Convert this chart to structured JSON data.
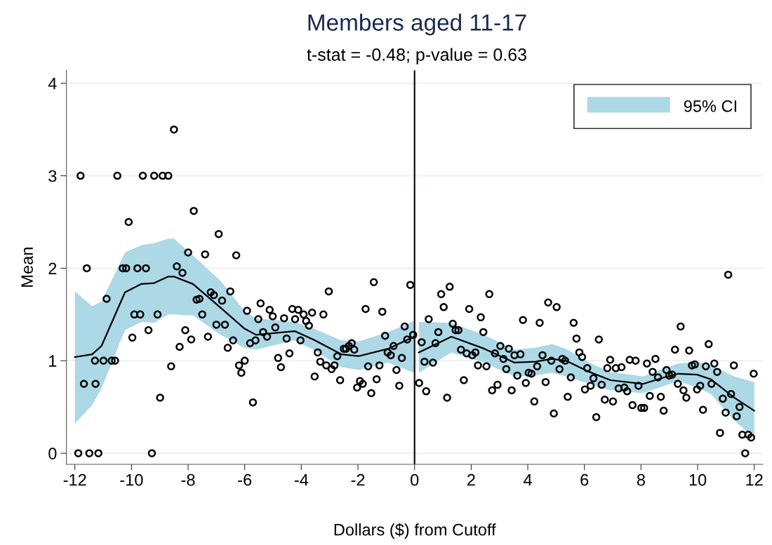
{
  "chart_data": {
    "type": "scatter",
    "title": "Members aged 11-17",
    "subtitle": "t-stat = -0.48; p-value = 0.63",
    "xlabel": "Dollars ($) from Cutoff",
    "ylabel": "Mean",
    "xlim": [
      -12.3,
      12.3
    ],
    "ylim": [
      -0.12,
      4.14
    ],
    "xticks": [
      -12,
      -10,
      -8,
      -6,
      -4,
      -2,
      0,
      2,
      4,
      6,
      8,
      10,
      12
    ],
    "yticks": [
      0,
      1,
      2,
      3,
      4
    ],
    "grid": "y",
    "legend": "top right",
    "ref_lines": [
      {
        "axis": "x",
        "value": 0,
        "color": "#000000"
      }
    ],
    "series": [
      {
        "type": "line",
        "name": "95% CI",
        "color": "#000000",
        "lower": [
          0.32,
          0.52,
          0.7,
          1.33,
          1.42,
          1.41,
          1.5,
          1.5,
          1.49,
          1.28,
          1.14,
          1.12,
          1.22,
          1.12,
          0.93,
          0.9,
          0.98,
          0.87,
          null,
          0.87,
          1.09,
          0.98,
          0.83,
          0.84,
          0.87,
          0.83,
          0.75,
          0.68,
          0.65,
          0.73,
          0.78,
          0.71,
          0.64,
          0.35,
          0.17
        ],
        "upper": [
          1.75,
          1.59,
          1.64,
          2.17,
          2.25,
          2.27,
          2.32,
          2.32,
          2.14,
          1.86,
          1.54,
          1.46,
          1.42,
          1.35,
          1.22,
          1.21,
          1.31,
          1.43,
          null,
          1.42,
          1.41,
          1.28,
          1.12,
          1.14,
          1.18,
          1.13,
          0.98,
          0.88,
          0.83,
          0.92,
          0.97,
          0.99,
          0.95,
          0.83,
          0.77
        ],
        "line_style": "solid",
        "marker": "none",
        "x": [
          -12,
          -11.39,
          -11.06,
          -10.23,
          -9.65,
          -9.2,
          -8.7,
          -8.5,
          -7.83,
          -6.84,
          -6.02,
          -5.6,
          -4.24,
          -3.58,
          -2.59,
          -1.97,
          -0.93,
          -0.02,
          0.07,
          0.15,
          1.3,
          2.46,
          3.53,
          4.27,
          4.85,
          5.35,
          6.17,
          6.92,
          8.08,
          8.82,
          9.32,
          9.98,
          10.47,
          11.3,
          12
        ],
        "values": [
          1.04,
          1.07,
          1.16,
          1.74,
          1.83,
          1.84,
          1.91,
          1.91,
          1.83,
          1.57,
          1.35,
          1.28,
          1.32,
          1.23,
          1.07,
          1.05,
          1.13,
          1.26,
          null,
          1.09,
          1.26,
          1.13,
          0.98,
          0.99,
          1.02,
          1.0,
          0.88,
          0.79,
          0.75,
          0.82,
          0.86,
          0.85,
          0.8,
          0.6,
          0.46
        ]
      },
      {
        "color": "#000000",
        "marker": "circle",
        "x": [
          -11.8,
          -10.5,
          -9.6,
          -9.2,
          -8.9,
          -8.7,
          -8.5,
          -7.8,
          -10.1,
          -6.92,
          -8.0,
          -7.4,
          -6.3,
          -11.58,
          -10.31,
          -10.19,
          -9.79,
          -9.49,
          -8.4,
          -8.2,
          -10.88,
          -7.2,
          -7.09,
          -7.7,
          -7.6,
          -6.8,
          -6.51,
          -9.9,
          -9.69,
          -9.08,
          -7.5,
          -9.4,
          -7.0,
          -6.7,
          -5.92,
          -5.44,
          -5.52,
          -5.35,
          -9.97,
          -8.1,
          -7.89,
          -7.3,
          -8.3,
          -6.41,
          -6.6,
          -5.81,
          -5.62,
          -11.29,
          -10.99,
          -10.7,
          -10.58,
          -8.6,
          -6.2,
          -6.0,
          -6.12,
          -11.68,
          -11.27,
          -8.99,
          -5.71,
          -11.88,
          -11.49,
          -11.17,
          -9.28,
          -5.21,
          -5.12,
          -5.01,
          -4.92,
          -4.82,
          -4.72,
          -4.61,
          -4.52,
          -4.42,
          -4.32,
          -4.11,
          -4.22,
          -3.92,
          -3.83,
          -3.73,
          -4.03,
          -3.62,
          -3.22,
          -3.03,
          -3.42,
          -3.33,
          -3.12,
          -2.93,
          -2.83,
          -3.53,
          -2.73,
          -2.63,
          -2.5,
          -2.42,
          -2.32,
          -2.22,
          -2.13,
          -2.03,
          -1.93,
          -1.83,
          -1.73,
          -1.64,
          -1.53,
          -1.44,
          -1.34,
          -1.24,
          -1.14,
          -1.04,
          -0.95,
          -0.84,
          -0.74,
          -0.64,
          -0.54,
          -0.45,
          -0.35,
          -0.26,
          -0.15,
          -0.05,
          0.16,
          0.35,
          0.41,
          0.25,
          0.5,
          0.65,
          0.74,
          0.84,
          0.94,
          1.03,
          1.15,
          1.24,
          1.35,
          1.45,
          1.55,
          1.64,
          1.74,
          1.84,
          1.93,
          2.04,
          2.15,
          2.24,
          2.34,
          2.43,
          2.54,
          2.64,
          2.74,
          2.84,
          2.93,
          3.03,
          3.14,
          3.24,
          3.33,
          3.43,
          3.53,
          3.63,
          3.74,
          3.83,
          3.93,
          4.03,
          4.13,
          4.23,
          4.33,
          4.42,
          4.52,
          4.63,
          4.72,
          4.83,
          4.92,
          5.02,
          5.12,
          5.22,
          5.32,
          5.41,
          5.52,
          5.62,
          5.72,
          5.82,
          5.92,
          6.02,
          6.1,
          6.22,
          6.32,
          6.42,
          6.51,
          6.61,
          6.72,
          6.81,
          6.91,
          7.01,
          7.11,
          7.21,
          7.31,
          7.41,
          7.51,
          7.6,
          7.7,
          7.81,
          7.91,
          8.01,
          8.11,
          8.21,
          8.31,
          8.41,
          8.51,
          8.6,
          8.7,
          8.8,
          8.9,
          9.0,
          9.1,
          9.2,
          9.3,
          9.4,
          9.5,
          9.6,
          9.7,
          9.8,
          9.9,
          9.98,
          10.09,
          10.19,
          10.29,
          10.39,
          10.49,
          10.59,
          10.69,
          10.79,
          10.89,
          10.99,
          11.08,
          11.18,
          11.28,
          11.38,
          11.48,
          11.58,
          11.68,
          11.79,
          11.89,
          11.98
        ],
        "values": [
          3,
          3,
          3,
          3,
          3,
          3,
          3.5,
          2.62,
          2.5,
          2.37,
          2.17,
          2.15,
          2.14,
          2,
          2,
          2,
          2,
          2,
          2.02,
          1.95,
          1.67,
          1.74,
          1.71,
          1.66,
          1.67,
          1.65,
          1.75,
          1.5,
          1.5,
          1.5,
          1.5,
          1.33,
          1.39,
          1.39,
          1.54,
          1.62,
          1.45,
          1.31,
          1.25,
          1.33,
          1.23,
          1.26,
          1.15,
          1.22,
          1.14,
          1.19,
          1.22,
          1,
          1,
          1,
          1,
          0.94,
          0.95,
          1,
          0.87,
          0.75,
          0.75,
          0.6,
          0.55,
          0,
          0,
          0,
          0,
          1.26,
          1.55,
          1.48,
          1.36,
          1.03,
          0.93,
          1.46,
          1.24,
          1.08,
          1.56,
          1.55,
          1.45,
          1.5,
          1.43,
          1.38,
          1.22,
          1.52,
          1.5,
          1.75,
          1.09,
          0.99,
          0.95,
          0.91,
          0.95,
          0.83,
          1.05,
          0.79,
          1.13,
          1.13,
          1.16,
          1.19,
          1.12,
          0.71,
          0.78,
          0.75,
          1.56,
          0.94,
          0.65,
          1.85,
          0.8,
          0.95,
          1.53,
          1.27,
          1.09,
          1.06,
          1.16,
          0.9,
          0.73,
          1.03,
          1.37,
          1.23,
          1.82,
          1.28,
          0.76,
          0.99,
          0.67,
          1.2,
          1.45,
          0.98,
          1.19,
          1.31,
          1.72,
          1.58,
          0.6,
          1.8,
          1.4,
          1.33,
          1.33,
          1.12,
          0.79,
          1.08,
          1.56,
          1.06,
          1.09,
          0.95,
          1.47,
          1.31,
          0.94,
          1.72,
          0.68,
          1.08,
          0.74,
          1.16,
          1.02,
          0.91,
          1.13,
          0.68,
          1.06,
          0.84,
          1.07,
          1.44,
          0.76,
          0.87,
          0.86,
          0.56,
          0.94,
          1.41,
          1.06,
          0.77,
          1.63,
          1.0,
          0.43,
          1.58,
          0.91,
          1.02,
          1.0,
          0.61,
          0.82,
          1.41,
          1.24,
          1.09,
          1.04,
          0.69,
          0.92,
          0.73,
          0.81,
          0.39,
          1.23,
          0.74,
          0.58,
          0.92,
          1.01,
          0.56,
          0.92,
          0.7,
          0.93,
          0.71,
          0.67,
          1.01,
          0.52,
          1.0,
          0.73,
          0.49,
          0.49,
          0.97,
          0.62,
          0.88,
          1.02,
          0.82,
          0.61,
          0.46,
          0.9,
          0.84,
          0.85,
          1.12,
          0.75,
          1.37,
          0.68,
          0.6,
          1.11,
          0.95,
          0.96,
          0.69,
          0.73,
          0.47,
          0.94,
          1.18,
          0.75,
          0.97,
          0.88,
          0.22,
          0.59,
          0.44,
          1.93,
          0.64,
          0.95,
          0.4,
          0.5,
          0.2,
          0,
          0.2,
          0.17,
          0.86
        ]
      }
    ]
  }
}
